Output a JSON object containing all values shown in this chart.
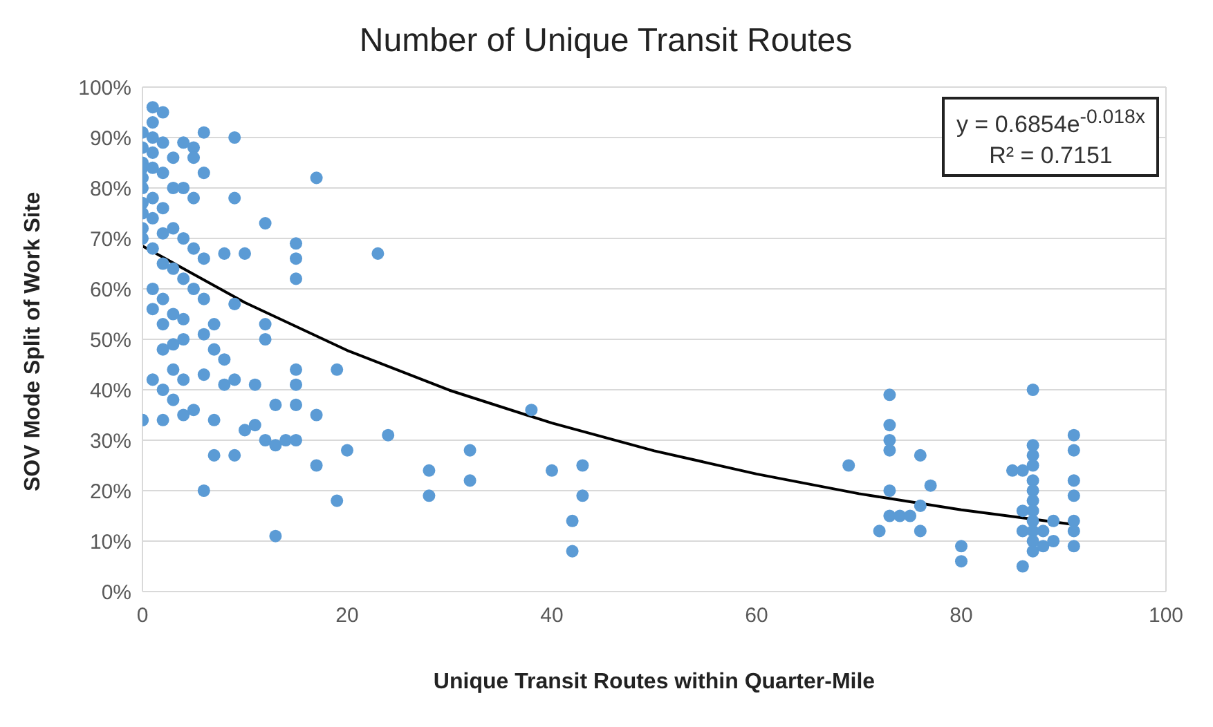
{
  "chart_data": {
    "type": "scatter",
    "title": "Number of Unique Transit Routes",
    "xlabel": "Unique Transit Routes within Quarter-Mile",
    "ylabel": "SOV Mode Split of Work Site",
    "annotations": [
      "y = 0.6854e$^{-0.018x}$",
      "R² = 0.7151"
    ],
    "xlim": [
      0,
      100
    ],
    "xticks": [
      0,
      20,
      40,
      60,
      80,
      100
    ],
    "ylim": [
      0,
      100
    ],
    "yticks": [
      {
        "value": 0,
        "label": "0%"
      },
      {
        "value": 10,
        "label": "10%"
      },
      {
        "value": 20,
        "label": "20%"
      },
      {
        "value": 30,
        "label": "30%"
      },
      {
        "value": 40,
        "label": "40%"
      },
      {
        "value": 50,
        "label": "50%"
      },
      {
        "value": 60,
        "label": "60%"
      },
      {
        "value": 70,
        "label": "70%"
      },
      {
        "value": 80,
        "label": "80%"
      },
      {
        "value": 90,
        "label": "90%"
      },
      {
        "value": 100,
        "label": "100%"
      }
    ],
    "grid": true,
    "marker": "circle",
    "series": [
      {
        "color": "#5b9bd5",
        "x": [
          0,
          0,
          0,
          0,
          0,
          0,
          0,
          0,
          0,
          0,
          1,
          1,
          1,
          1,
          1,
          1,
          1,
          1,
          1,
          1,
          2,
          2,
          2,
          2,
          2,
          2,
          2,
          2,
          2,
          3,
          3,
          3,
          3,
          3,
          3,
          4,
          4,
          4,
          4,
          4,
          5,
          5,
          5,
          5,
          6,
          6,
          6,
          6,
          3,
          3,
          2,
          4,
          1,
          0,
          0,
          2,
          4,
          5,
          6,
          7,
          7,
          8,
          9,
          9,
          10,
          11,
          11,
          12,
          13,
          13,
          13,
          14,
          15,
          15,
          15,
          15,
          17,
          17,
          19,
          19,
          20,
          24,
          28,
          28,
          32,
          32,
          38,
          40,
          42,
          42,
          43,
          43,
          12,
          17,
          23,
          15,
          15,
          15,
          9,
          10,
          12,
          12,
          8,
          9,
          7,
          8,
          7,
          6,
          6,
          9,
          4,
          5,
          69,
          72,
          73,
          73,
          73,
          73,
          73,
          73,
          74,
          75,
          76,
          76,
          76,
          77,
          80,
          80,
          85,
          86,
          86,
          86,
          86,
          87,
          87,
          87,
          87,
          87,
          87,
          87,
          87,
          87,
          87,
          87,
          87,
          88,
          88,
          89,
          89,
          91,
          91,
          91,
          91,
          91,
          91,
          91
        ],
        "values": [
          91,
          88,
          85,
          82,
          80,
          77,
          75,
          72,
          70,
          84,
          96,
          93,
          90,
          87,
          84,
          78,
          74,
          68,
          60,
          56,
          95,
          89,
          83,
          76,
          71,
          65,
          58,
          53,
          48,
          86,
          80,
          72,
          64,
          55,
          49,
          80,
          70,
          62,
          54,
          50,
          78,
          68,
          60,
          88,
          91,
          83,
          66,
          58,
          44,
          38,
          40,
          42,
          42,
          34,
          34,
          34,
          35,
          36,
          20,
          27,
          34,
          41,
          27,
          42,
          32,
          33,
          41,
          30,
          11,
          29,
          37,
          30,
          37,
          41,
          30,
          44,
          25,
          35,
          18,
          44,
          28,
          31,
          19,
          24,
          22,
          28,
          36,
          24,
          8,
          14,
          19,
          25,
          73,
          82,
          67,
          62,
          66,
          69,
          90,
          67,
          53,
          50,
          67,
          57,
          53,
          46,
          48,
          43,
          51,
          78,
          89,
          86,
          25,
          12,
          39,
          33,
          30,
          28,
          20,
          15,
          15,
          15,
          27,
          17,
          12,
          21,
          9,
          6,
          24,
          24,
          16,
          12,
          5,
          40,
          29,
          27,
          25,
          22,
          20,
          18,
          16,
          14,
          12,
          10,
          8,
          12,
          9,
          10,
          14,
          31,
          28,
          22,
          19,
          14,
          12,
          9
        ]
      },
      {
        "type": "line",
        "color": "#000000",
        "marker": "none",
        "x": [
          0,
          10,
          20,
          30,
          40,
          50,
          60,
          70,
          80,
          91
        ],
        "values": [
          68.5,
          57.3,
          47.8,
          39.9,
          33.4,
          27.9,
          23.3,
          19.4,
          16.2,
          13.3
        ]
      }
    ]
  }
}
